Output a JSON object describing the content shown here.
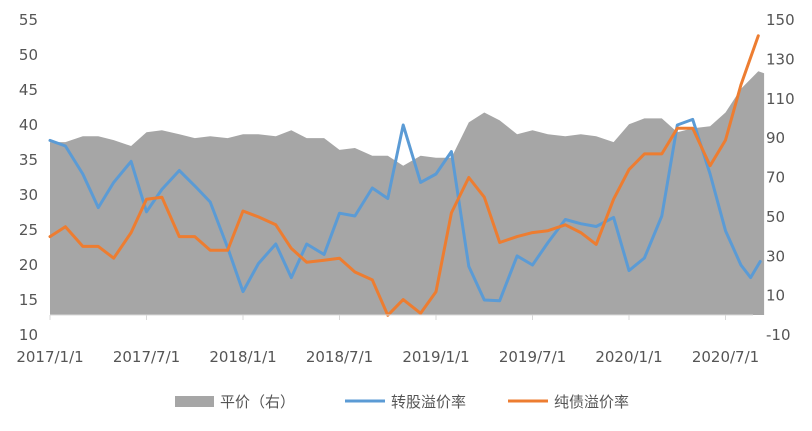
{
  "chart_data": {
    "type": "area",
    "x_tick_labels": [
      "2017/1/1",
      "2017/7/1",
      "2018/1/1",
      "2018/7/1",
      "2019/1/1",
      "2019/7/1",
      "2020/1/1",
      "2020/7/1"
    ],
    "y_left": {
      "ticks": [
        "10",
        "15",
        "20",
        "25",
        "30",
        "35",
        "40",
        "45",
        "50",
        "55"
      ],
      "range": [
        10,
        55
      ]
    },
    "y_right": {
      "ticks": [
        "-10",
        "10",
        "30",
        "50",
        "70",
        "90",
        "110",
        "130",
        "150"
      ],
      "range": [
        -10,
        150
      ]
    },
    "grid": "none",
    "legend_position": "bottom",
    "legend": [
      {
        "label": "平价（右）",
        "color": "#a6a6a6",
        "kind": "area"
      },
      {
        "label": "转股溢价率",
        "color": "#5b9bd5",
        "kind": "line"
      },
      {
        "label": "纯债溢价率",
        "color": "#ed7d31",
        "kind": "line"
      }
    ],
    "series": [
      {
        "name": "平价（右）",
        "axis": "right",
        "type": "area",
        "color": "#a6a6a6",
        "values": [
          [
            0.0,
            88
          ],
          [
            0.08,
            88
          ],
          [
            0.17,
            91
          ],
          [
            0.25,
            91
          ],
          [
            0.33,
            89
          ],
          [
            0.42,
            86
          ],
          [
            0.5,
            93
          ],
          [
            0.58,
            94
          ],
          [
            0.67,
            92
          ],
          [
            0.75,
            90
          ],
          [
            0.83,
            91
          ],
          [
            0.92,
            90
          ],
          [
            1.0,
            92
          ],
          [
            1.08,
            92
          ],
          [
            1.17,
            91
          ],
          [
            1.25,
            94
          ],
          [
            1.33,
            90
          ],
          [
            1.42,
            90
          ],
          [
            1.5,
            84
          ],
          [
            1.58,
            85
          ],
          [
            1.67,
            81
          ],
          [
            1.75,
            81
          ],
          [
            1.83,
            76
          ],
          [
            1.92,
            81
          ],
          [
            2.0,
            80
          ],
          [
            2.08,
            80
          ],
          [
            2.17,
            98
          ],
          [
            2.25,
            103
          ],
          [
            2.33,
            99
          ],
          [
            2.42,
            92
          ],
          [
            2.5,
            94
          ],
          [
            2.58,
            92
          ],
          [
            2.67,
            91
          ],
          [
            2.75,
            92
          ],
          [
            2.83,
            91
          ],
          [
            2.92,
            88
          ],
          [
            3.0,
            97
          ],
          [
            3.08,
            100
          ],
          [
            3.17,
            100
          ],
          [
            3.25,
            93
          ],
          [
            3.33,
            95
          ],
          [
            3.42,
            96
          ],
          [
            3.5,
            103
          ],
          [
            3.58,
            115
          ],
          [
            3.67,
            124
          ],
          [
            3.7,
            123
          ]
        ]
      },
      {
        "name": "转股溢价率",
        "axis": "left",
        "type": "line",
        "color": "#5b9bd5",
        "values": [
          [
            0.0,
            37.8
          ],
          [
            0.08,
            37.0
          ],
          [
            0.17,
            33.0
          ],
          [
            0.25,
            28.2
          ],
          [
            0.33,
            31.8
          ],
          [
            0.42,
            34.8
          ],
          [
            0.5,
            27.6
          ],
          [
            0.58,
            30.8
          ],
          [
            0.67,
            33.5
          ],
          [
            0.75,
            31.3
          ],
          [
            0.83,
            29.0
          ],
          [
            0.92,
            22.5
          ],
          [
            1.0,
            16.2
          ],
          [
            1.08,
            20.2
          ],
          [
            1.17,
            23.0
          ],
          [
            1.25,
            18.2
          ],
          [
            1.33,
            23.0
          ],
          [
            1.42,
            21.5
          ],
          [
            1.5,
            27.4
          ],
          [
            1.58,
            27.0
          ],
          [
            1.67,
            31.0
          ],
          [
            1.75,
            29.5
          ],
          [
            1.83,
            40.0
          ],
          [
            1.92,
            31.8
          ],
          [
            2.0,
            33.0
          ],
          [
            2.08,
            36.2
          ],
          [
            2.17,
            19.8
          ],
          [
            2.25,
            15.0
          ],
          [
            2.33,
            14.9
          ],
          [
            2.42,
            21.3
          ],
          [
            2.5,
            20.0
          ],
          [
            2.58,
            23.2
          ],
          [
            2.67,
            26.5
          ],
          [
            2.75,
            25.9
          ],
          [
            2.83,
            25.5
          ],
          [
            2.92,
            26.8
          ],
          [
            3.0,
            19.2
          ],
          [
            3.08,
            21.0
          ],
          [
            3.17,
            27.0
          ],
          [
            3.25,
            40.0
          ],
          [
            3.33,
            40.8
          ],
          [
            3.42,
            33.0
          ],
          [
            3.5,
            24.9
          ],
          [
            3.58,
            20.0
          ],
          [
            3.63,
            18.2
          ],
          [
            3.68,
            20.5
          ]
        ]
      },
      {
        "name": "纯债溢价率",
        "axis": "right",
        "type": "line",
        "color": "#ed7d31",
        "values": [
          [
            0.0,
            40
          ],
          [
            0.08,
            45
          ],
          [
            0.17,
            35
          ],
          [
            0.25,
            35
          ],
          [
            0.33,
            29
          ],
          [
            0.42,
            42
          ],
          [
            0.5,
            59
          ],
          [
            0.58,
            60
          ],
          [
            0.67,
            40
          ],
          [
            0.75,
            40
          ],
          [
            0.83,
            33
          ],
          [
            0.92,
            33
          ],
          [
            1.0,
            53
          ],
          [
            1.08,
            50
          ],
          [
            1.17,
            46
          ],
          [
            1.25,
            34
          ],
          [
            1.33,
            27
          ],
          [
            1.42,
            28
          ],
          [
            1.5,
            29
          ],
          [
            1.58,
            22
          ],
          [
            1.67,
            18
          ],
          [
            1.75,
            0
          ],
          [
            1.83,
            8
          ],
          [
            1.92,
            1
          ],
          [
            2.0,
            12
          ],
          [
            2.08,
            52
          ],
          [
            2.17,
            70
          ],
          [
            2.25,
            60
          ],
          [
            2.33,
            37
          ],
          [
            2.42,
            40
          ],
          [
            2.5,
            42
          ],
          [
            2.58,
            43
          ],
          [
            2.67,
            46
          ],
          [
            2.75,
            42
          ],
          [
            2.83,
            36
          ],
          [
            2.92,
            59
          ],
          [
            3.0,
            74
          ],
          [
            3.08,
            82
          ],
          [
            3.17,
            82
          ],
          [
            3.25,
            95
          ],
          [
            3.33,
            95
          ],
          [
            3.42,
            76
          ],
          [
            3.5,
            89
          ],
          [
            3.58,
            117
          ],
          [
            3.67,
            142
          ]
        ]
      }
    ]
  }
}
